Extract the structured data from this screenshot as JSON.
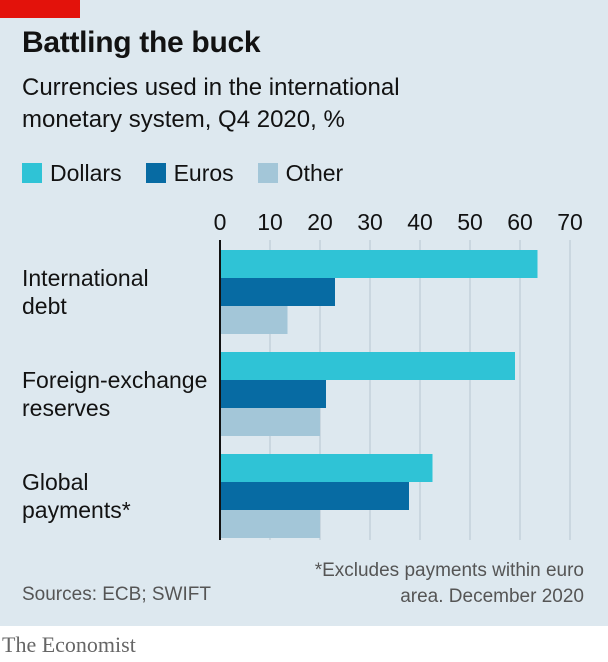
{
  "header": {
    "title": "Battling the buck",
    "subtitle": "Currencies used in the international monetary system, Q4 2020, %"
  },
  "legend": [
    {
      "label": "Dollars",
      "color": "#2fc3d6"
    },
    {
      "label": "Euros",
      "color": "#076ba3"
    },
    {
      "label": "Other",
      "color": "#a3c6d8"
    }
  ],
  "footer": {
    "footnote": "*Excludes payments within euro area. December 2020",
    "source": "Sources: ECB; SWIFT",
    "brand": "The Economist"
  },
  "chart_data": {
    "type": "bar",
    "orientation": "horizontal",
    "categories": [
      [
        "International",
        "debt"
      ],
      [
        "Foreign-exchange",
        "reserves"
      ],
      [
        "Global",
        "payments*"
      ]
    ],
    "series": [
      {
        "name": "Dollars",
        "color": "#2fc3d6",
        "values": [
          63.5,
          59,
          42.5
        ]
      },
      {
        "name": "Euros",
        "color": "#076ba3",
        "values": [
          23,
          21.2,
          37.8
        ]
      },
      {
        "name": "Other",
        "color": "#a3c6d8",
        "values": [
          13.5,
          20,
          20
        ]
      }
    ],
    "ticks": [
      0,
      10,
      20,
      30,
      40,
      50,
      60,
      70
    ],
    "xlim": [
      0,
      70
    ],
    "grid": true,
    "legend_position": "top-left"
  }
}
